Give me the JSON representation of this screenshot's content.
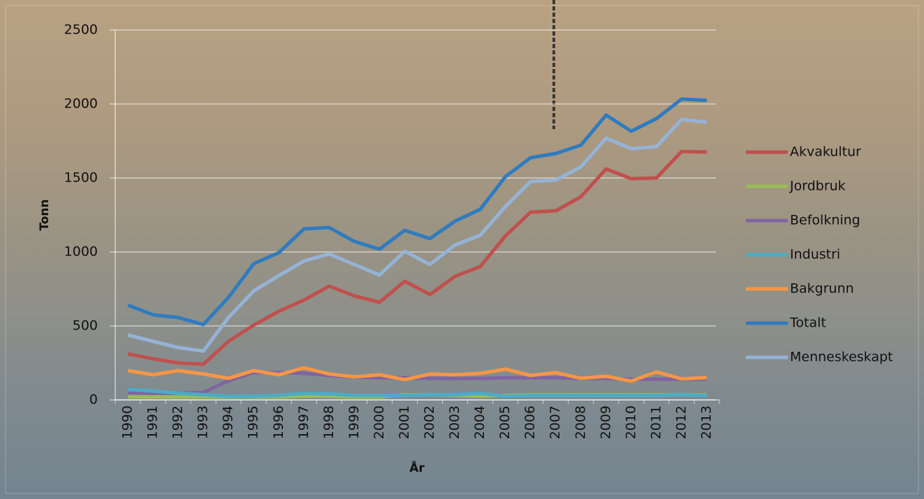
{
  "chart_data": {
    "type": "line",
    "x_label": "År",
    "y_label": "Tonn",
    "categories": [
      "1990",
      "1991",
      "1992",
      "1993",
      "1994",
      "1995",
      "1996",
      "1997",
      "1998",
      "1999",
      "2000",
      "2001",
      "2002",
      "2003",
      "2004",
      "2005",
      "2006",
      "2007",
      "2008",
      "2009",
      "2010",
      "2011",
      "2012",
      "2013"
    ],
    "ylim": [
      0,
      2500
    ],
    "yticks": [
      0,
      500,
      1000,
      1500,
      2000,
      2500
    ],
    "grid": true,
    "legend": "right",
    "series": [
      {
        "name": "Akvakultur",
        "color": "#c0504d",
        "values": [
          311,
          278,
          250,
          241,
          396,
          505,
          599,
          675,
          769,
          703,
          660,
          802,
          712,
          835,
          901,
          1108,
          1269,
          1278,
          1373,
          1561,
          1495,
          1500,
          1679,
          1675
        ]
      },
      {
        "name": "Jordbruk",
        "color": "#9bbb59",
        "values": [
          20,
          20,
          20,
          20,
          20,
          20,
          20,
          25,
          25,
          20,
          20,
          35,
          35,
          30,
          25,
          30,
          35,
          35,
          35,
          35,
          35,
          35,
          35,
          35
        ]
      },
      {
        "name": "Befolkning",
        "color": "#8064a2",
        "values": [
          50,
          45,
          45,
          50,
          130,
          185,
          185,
          180,
          165,
          155,
          150,
          150,
          145,
          145,
          145,
          150,
          150,
          150,
          145,
          145,
          140,
          140,
          140,
          140
        ]
      },
      {
        "name": "Industri",
        "color": "#4bacc6",
        "values": [
          70,
          60,
          45,
          35,
          25,
          25,
          30,
          45,
          40,
          30,
          30,
          30,
          35,
          35,
          45,
          25,
          30,
          30,
          30,
          30,
          30,
          30,
          35,
          30
        ]
      },
      {
        "name": "Bakgrunn",
        "color": "#f79646",
        "values": [
          198,
          170,
          198,
          175,
          146,
          198,
          170,
          217,
          175,
          156,
          170,
          137,
          175,
          170,
          179,
          208,
          165,
          184,
          146,
          160,
          127,
          189,
          142,
          151
        ]
      },
      {
        "name": "Totalt",
        "color": "#2f7bbf",
        "values": [
          641,
          575,
          557,
          509,
          693,
          920,
          995,
          1156,
          1165,
          1071,
          1019,
          1146,
          1090,
          1208,
          1288,
          1509,
          1637,
          1665,
          1722,
          1925,
          1816,
          1901,
          2033,
          2024
        ]
      },
      {
        "name": "Menneskeskapt",
        "color": "#95b3d7",
        "values": [
          439,
          396,
          354,
          330,
          557,
          736,
          840,
          939,
          986,
          915,
          844,
          1005,
          915,
          1047,
          1113,
          1307,
          1476,
          1486,
          1575,
          1769,
          1698,
          1712,
          1896,
          1877
        ]
      }
    ]
  }
}
